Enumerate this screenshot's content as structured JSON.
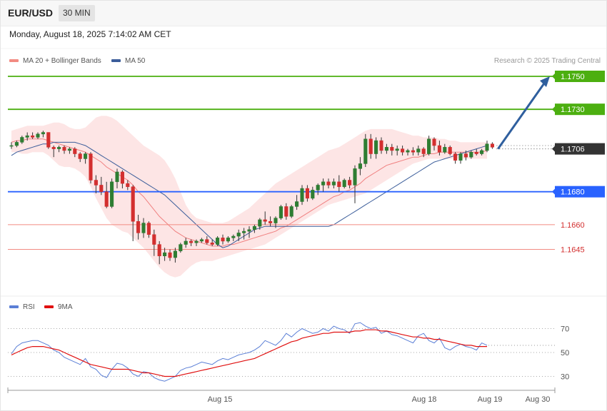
{
  "header": {
    "symbol": "EUR/USD",
    "timeframe": "30 MIN"
  },
  "datetime": "Monday, August 18, 2025 7:14:02 AM CET",
  "legend": {
    "ma20_label": "MA 20 + Bollinger Bands",
    "ma20_color": "#f28b82",
    "ma50_label": "MA 50",
    "ma50_color": "#3b5d9a"
  },
  "copyright": "Research © 2025 Trading Central",
  "rsi_legend": {
    "rsi_label": "RSI",
    "rsi_color": "#5b7fd6",
    "ma_label": "9MA",
    "ma_color": "#e01010"
  },
  "chart_data": {
    "type": "candlestick",
    "price_range": [
      1.1624,
      1.1758
    ],
    "current_price": "1.1706",
    "levels": [
      {
        "value": 1.175,
        "label": "1.1750",
        "color": "#4caf10",
        "kind": "resistance"
      },
      {
        "value": 1.173,
        "label": "1.1730",
        "color": "#4caf10",
        "kind": "resistance"
      },
      {
        "value": 1.168,
        "label": "1.1680",
        "color": "#2962ff",
        "kind": "pivot"
      },
      {
        "value": 1.166,
        "label": "1.1660",
        "color": "#e53935",
        "kind": "support"
      },
      {
        "value": 1.1645,
        "label": "1.1645",
        "color": "#e53935",
        "kind": "support"
      }
    ],
    "candles": [
      [
        1.1708,
        1.171,
        1.1706,
        1.1708
      ],
      [
        1.1708,
        1.1711,
        1.1707,
        1.171
      ],
      [
        1.171,
        1.1714,
        1.1709,
        1.1713
      ],
      [
        1.1713,
        1.1716,
        1.1711,
        1.1714
      ],
      [
        1.1714,
        1.1716,
        1.1712,
        1.1713
      ],
      [
        1.1713,
        1.1716,
        1.1712,
        1.1715
      ],
      [
        1.1715,
        1.1717,
        1.1713,
        1.1716
      ],
      [
        1.1716,
        1.1716,
        1.1706,
        1.1707
      ],
      [
        1.1707,
        1.1708,
        1.1701,
        1.1706
      ],
      [
        1.1706,
        1.1708,
        1.1704,
        1.1707
      ],
      [
        1.1707,
        1.1708,
        1.1703,
        1.1705
      ],
      [
        1.1705,
        1.1707,
        1.1703,
        1.1706
      ],
      [
        1.1706,
        1.1707,
        1.1701,
        1.1703
      ],
      [
        1.1703,
        1.1704,
        1.1698,
        1.17
      ],
      [
        1.17,
        1.1704,
        1.1697,
        1.1703
      ],
      [
        1.1703,
        1.1704,
        1.1685,
        1.1687
      ],
      [
        1.1687,
        1.169,
        1.1679,
        1.1684
      ],
      [
        1.1684,
        1.1689,
        1.1678,
        1.168
      ],
      [
        1.168,
        1.1686,
        1.167,
        1.1671
      ],
      [
        1.1671,
        1.1688,
        1.167,
        1.1686
      ],
      [
        1.1686,
        1.1694,
        1.1682,
        1.1692
      ],
      [
        1.1692,
        1.1693,
        1.1682,
        1.1685
      ],
      [
        1.1685,
        1.1687,
        1.1681,
        1.1683
      ],
      [
        1.1683,
        1.1684,
        1.165,
        1.1662
      ],
      [
        1.1662,
        1.1666,
        1.1651,
        1.1655
      ],
      [
        1.1655,
        1.1664,
        1.1652,
        1.1661
      ],
      [
        1.1661,
        1.1662,
        1.1652,
        1.1654
      ],
      [
        1.1654,
        1.1657,
        1.1641,
        1.1648
      ],
      [
        1.1648,
        1.165,
        1.1636,
        1.1641
      ],
      [
        1.1641,
        1.1646,
        1.1638,
        1.1643
      ],
      [
        1.1643,
        1.1645,
        1.1638,
        1.164
      ],
      [
        1.164,
        1.1646,
        1.1637,
        1.1644
      ],
      [
        1.1644,
        1.1649,
        1.1643,
        1.1648
      ],
      [
        1.1648,
        1.1652,
        1.1646,
        1.165
      ],
      [
        1.165,
        1.1651,
        1.1647,
        1.1649
      ],
      [
        1.1649,
        1.1651,
        1.1647,
        1.165
      ],
      [
        1.165,
        1.1652,
        1.1649,
        1.1651
      ],
      [
        1.1651,
        1.1653,
        1.1648,
        1.1649
      ],
      [
        1.1649,
        1.1651,
        1.1647,
        1.1648
      ],
      [
        1.1648,
        1.1653,
        1.1647,
        1.1652
      ],
      [
        1.1652,
        1.1654,
        1.1648,
        1.165
      ],
      [
        1.165,
        1.1653,
        1.1649,
        1.1652
      ],
      [
        1.1652,
        1.1654,
        1.165,
        1.1653
      ],
      [
        1.1653,
        1.1657,
        1.165,
        1.1655
      ],
      [
        1.1655,
        1.1658,
        1.1651,
        1.1656
      ],
      [
        1.1656,
        1.1659,
        1.1652,
        1.1657
      ],
      [
        1.1657,
        1.166,
        1.1655,
        1.1659
      ],
      [
        1.1659,
        1.1664,
        1.1657,
        1.1663
      ],
      [
        1.1663,
        1.1668,
        1.166,
        1.1662
      ],
      [
        1.1662,
        1.1665,
        1.1659,
        1.1661
      ],
      [
        1.1661,
        1.1665,
        1.1658,
        1.1664
      ],
      [
        1.1664,
        1.1672,
        1.1663,
        1.1671
      ],
      [
        1.1671,
        1.1673,
        1.1663,
        1.1665
      ],
      [
        1.1665,
        1.1672,
        1.1664,
        1.1671
      ],
      [
        1.1671,
        1.1678,
        1.1669,
        1.1674
      ],
      [
        1.1674,
        1.1684,
        1.1672,
        1.1682
      ],
      [
        1.1682,
        1.1684,
        1.1674,
        1.1676
      ],
      [
        1.1676,
        1.1683,
        1.1675,
        1.1681
      ],
      [
        1.1681,
        1.1685,
        1.1678,
        1.1684
      ],
      [
        1.1684,
        1.1688,
        1.168,
        1.1686
      ],
      [
        1.1686,
        1.1688,
        1.1682,
        1.1684
      ],
      [
        1.1684,
        1.1688,
        1.1682,
        1.1686
      ],
      [
        1.1686,
        1.169,
        1.168,
        1.1683
      ],
      [
        1.1683,
        1.1688,
        1.1682,
        1.1687
      ],
      [
        1.1687,
        1.1689,
        1.1682,
        1.1684
      ],
      [
        1.1684,
        1.1696,
        1.1673,
        1.1694
      ],
      [
        1.1694,
        1.1701,
        1.169,
        1.1697
      ],
      [
        1.1697,
        1.1715,
        1.1695,
        1.1712
      ],
      [
        1.1712,
        1.1715,
        1.17,
        1.1703
      ],
      [
        1.1703,
        1.1713,
        1.17,
        1.1711
      ],
      [
        1.1711,
        1.1713,
        1.1703,
        1.1705
      ],
      [
        1.1705,
        1.1709,
        1.1703,
        1.1707
      ],
      [
        1.1707,
        1.1709,
        1.1702,
        1.1705
      ],
      [
        1.1705,
        1.1708,
        1.1702,
        1.1706
      ],
      [
        1.1706,
        1.1708,
        1.1702,
        1.1704
      ],
      [
        1.1704,
        1.1706,
        1.1702,
        1.1705
      ],
      [
        1.1705,
        1.1707,
        1.1702,
        1.1704
      ],
      [
        1.1704,
        1.1708,
        1.1702,
        1.1706
      ],
      [
        1.1706,
        1.1707,
        1.1701,
        1.1703
      ],
      [
        1.1703,
        1.1714,
        1.1702,
        1.1712
      ],
      [
        1.1712,
        1.1713,
        1.1705,
        1.1708
      ],
      [
        1.1708,
        1.1711,
        1.1702,
        1.1704
      ],
      [
        1.1704,
        1.1709,
        1.1703,
        1.1707
      ],
      [
        1.1707,
        1.1708,
        1.1702,
        1.1703
      ],
      [
        1.1703,
        1.1704,
        1.1697,
        1.1699
      ],
      [
        1.1699,
        1.1704,
        1.1697,
        1.1703
      ],
      [
        1.1703,
        1.1705,
        1.1699,
        1.1701
      ],
      [
        1.1701,
        1.1705,
        1.17,
        1.1704
      ],
      [
        1.1704,
        1.1706,
        1.1702,
        1.1703
      ],
      [
        1.1703,
        1.1706,
        1.1702,
        1.1705
      ],
      [
        1.1705,
        1.1711,
        1.1704,
        1.1709
      ],
      [
        1.1709,
        1.171,
        1.1706,
        1.1707
      ]
    ],
    "ma20": [
      1.171,
      1.1711,
      1.1711,
      1.1712,
      1.1712,
      1.1712,
      1.1712,
      1.1711,
      1.171,
      1.1709,
      1.1708,
      1.1707,
      1.1706,
      1.1705,
      1.1704,
      1.1702,
      1.17,
      1.1698,
      1.1695,
      1.1693,
      1.1691,
      1.1689,
      1.1687,
      1.1684,
      1.168,
      1.1677,
      1.1673,
      1.1669,
      1.1665,
      1.1662,
      1.1659,
      1.1656,
      1.1654,
      1.1652,
      1.1651,
      1.165,
      1.1649,
      1.1648,
      1.1647,
      1.1647,
      1.1647,
      1.1648,
      1.1648,
      1.1649,
      1.165,
      1.1651,
      1.1652,
      1.1653,
      1.1654,
      1.1655,
      1.1656,
      1.1658,
      1.1659,
      1.1661,
      1.1663,
      1.1665,
      1.1667,
      1.1669,
      1.1671,
      1.1673,
      1.1675,
      1.1677,
      1.1678,
      1.168,
      1.1681,
      1.1683,
      1.1685,
      1.1688,
      1.169,
      1.1692,
      1.1694,
      1.1696,
      1.1697,
      1.1698,
      1.1699,
      1.17,
      1.1701,
      1.1701,
      1.1702,
      1.1703,
      1.1703,
      1.1704,
      1.1704,
      1.1704,
      1.1704,
      1.1704,
      1.1704,
      1.1704,
      1.1704,
      1.1704,
      1.1705
    ],
    "bb_upper": [
      1.1717,
      1.1718,
      1.1719,
      1.172,
      1.172,
      1.172,
      1.172,
      1.1721,
      1.1722,
      1.1722,
      1.1721,
      1.1719,
      1.1718,
      1.1718,
      1.1719,
      1.1722,
      1.1725,
      1.1726,
      1.1726,
      1.1725,
      1.1723,
      1.172,
      1.1717,
      1.1714,
      1.1711,
      1.1708,
      1.1706,
      1.1704,
      1.1702,
      1.1699,
      1.1694,
      1.1688,
      1.168,
      1.1672,
      1.1667,
      1.1664,
      1.1663,
      1.1662,
      1.1661,
      1.1661,
      1.1661,
      1.1662,
      1.1664,
      1.1666,
      1.1668,
      1.167,
      1.1673,
      1.1676,
      1.1679,
      1.1682,
      1.1685,
      1.1687,
      1.1689,
      1.1691,
      1.1693,
      1.1695,
      1.1697,
      1.1699,
      1.1701,
      1.1703,
      1.1705,
      1.1706,
      1.1707,
      1.1709,
      1.1711,
      1.1713,
      1.1715,
      1.1717,
      1.1718,
      1.1718,
      1.1718,
      1.1718,
      1.1718,
      1.1717,
      1.1716,
      1.1715,
      1.1714,
      1.1714,
      1.1713,
      1.1713,
      1.1713,
      1.1712,
      1.1712,
      1.1711,
      1.1711,
      1.171,
      1.171,
      1.171,
      1.171,
      1.171,
      1.171
    ],
    "bb_lower": [
      1.1704,
      1.1704,
      1.1703,
      1.1703,
      1.1704,
      1.1704,
      1.1704,
      1.1702,
      1.1699,
      1.1696,
      1.1695,
      1.1695,
      1.1694,
      1.1692,
      1.1689,
      1.1683,
      1.1676,
      1.167,
      1.1664,
      1.166,
      1.1658,
      1.1656,
      1.1655,
      1.1652,
      1.1649,
      1.1646,
      1.1642,
      1.1638,
      1.1634,
      1.1631,
      1.1629,
      1.1628,
      1.1629,
      1.1632,
      1.1635,
      1.1637,
      1.1638,
      1.1638,
      1.1638,
      1.1639,
      1.164,
      1.1641,
      1.1642,
      1.1643,
      1.1644,
      1.1645,
      1.1646,
      1.1647,
      1.1648,
      1.165,
      1.1652,
      1.1654,
      1.1656,
      1.1658,
      1.166,
      1.1662,
      1.1664,
      1.1666,
      1.1668,
      1.167,
      1.1672,
      1.1673,
      1.1674,
      1.1675,
      1.1676,
      1.1677,
      1.1678,
      1.1679,
      1.1681,
      1.1683,
      1.1685,
      1.1687,
      1.1689,
      1.1691,
      1.1693,
      1.1695,
      1.1697,
      1.1698,
      1.1699,
      1.17,
      1.17,
      1.17,
      1.17,
      1.17,
      1.17,
      1.17,
      1.17,
      1.17,
      1.17,
      1.17,
      1.17
    ],
    "ma50": [
      1.1702,
      1.1704,
      1.1705,
      1.1706,
      1.1707,
      1.1708,
      1.1709,
      1.1709,
      1.171,
      1.171,
      1.171,
      1.171,
      1.171,
      1.1709,
      1.1708,
      1.1706,
      1.1704,
      1.1702,
      1.17,
      1.1698,
      1.1696,
      1.1694,
      1.1692,
      1.169,
      1.1688,
      1.1686,
      1.1684,
      1.1682,
      1.168,
      1.1678,
      1.1675,
      1.1672,
      1.1669,
      1.1666,
      1.1663,
      1.166,
      1.1657,
      1.1654,
      1.1651,
      1.1648,
      1.1646,
      1.1647,
      1.1649,
      1.1651,
      1.1653,
      1.1655,
      1.1657,
      1.1658,
      1.1659,
      1.1659,
      1.1659,
      1.1659,
      1.1659,
      1.1659,
      1.1659,
      1.1659,
      1.1659,
      1.1659,
      1.1659,
      1.1659,
      1.1659,
      1.166,
      1.1662,
      1.1664,
      1.1666,
      1.1668,
      1.167,
      1.1672,
      1.1674,
      1.1676,
      1.1678,
      1.168,
      1.1682,
      1.1684,
      1.1686,
      1.1688,
      1.169,
      1.1692,
      1.1694,
      1.1696,
      1.1698,
      1.1699,
      1.17,
      1.1701,
      1.1702,
      1.1703,
      1.1704,
      1.1705,
      1.1706,
      1.1707,
      1.1708
    ],
    "forecast_arrow": {
      "from_price": 1.1706,
      "to_price": 1.175
    },
    "x_labels": [
      "Aug 15",
      "Aug 18",
      "Aug 19",
      "Aug 30"
    ],
    "rsi": {
      "range": [
        10,
        90
      ],
      "levels": [
        70,
        50,
        30
      ],
      "rsi_values": [
        49,
        55,
        58,
        59,
        60,
        60,
        58,
        56,
        52,
        50,
        46,
        44,
        42,
        40,
        45,
        38,
        36,
        31,
        29,
        36,
        41,
        40,
        37,
        32,
        30,
        34,
        33,
        29,
        27,
        26,
        28,
        30,
        35,
        37,
        38,
        40,
        42,
        41,
        40,
        43,
        45,
        44,
        46,
        48,
        49,
        50,
        52,
        55,
        60,
        58,
        56,
        60,
        66,
        63,
        67,
        70,
        68,
        66,
        67,
        70,
        68,
        72,
        70,
        69,
        66,
        74,
        75,
        72,
        70,
        71,
        66,
        68,
        65,
        64,
        62,
        60,
        58,
        64,
        66,
        60,
        58,
        62,
        54,
        52,
        55,
        57,
        55,
        54,
        52,
        58,
        56
      ],
      "ma_values": [
        48,
        50,
        52,
        54,
        55,
        55,
        55,
        54,
        53,
        52,
        50,
        48,
        46,
        44,
        42,
        40,
        39,
        38,
        37,
        36,
        36,
        36,
        36,
        35,
        34,
        33,
        33,
        32,
        31,
        30,
        30,
        30,
        31,
        32,
        33,
        34,
        35,
        36,
        37,
        38,
        39,
        40,
        41,
        42,
        43,
        44,
        45,
        47,
        49,
        51,
        53,
        55,
        57,
        59,
        60,
        62,
        63,
        64,
        65,
        66,
        66,
        67,
        67,
        67,
        67,
        68,
        68,
        69,
        69,
        69,
        68,
        68,
        67,
        66,
        65,
        64,
        63,
        63,
        62,
        62,
        61,
        61,
        60,
        59,
        58,
        57,
        56,
        56,
        55,
        55,
        55
      ]
    }
  }
}
